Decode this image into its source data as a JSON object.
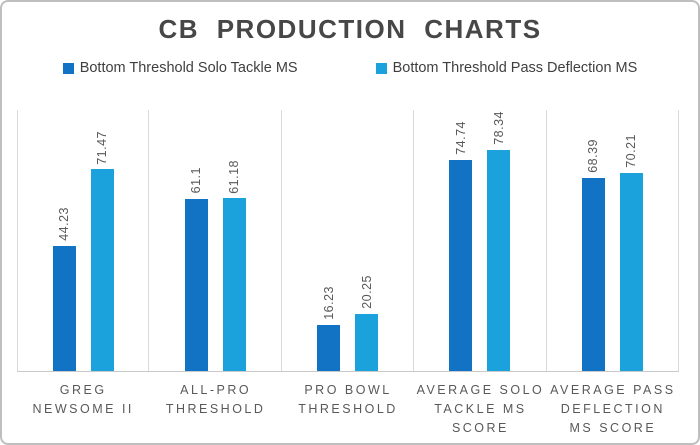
{
  "title": "CB PRODUCTION CHARTS",
  "legend": [
    {
      "label": "Bottom Threshold Solo Tackle MS",
      "color": "#1272C3",
      "icon": "legend-swatch-square"
    },
    {
      "label": "Bottom Threshold Pass Deflection MS",
      "color": "#1BA1DC",
      "icon": "legend-swatch-square"
    }
  ],
  "chart_data": {
    "type": "bar",
    "title": "CB PRODUCTION CHARTS",
    "categories": [
      "GREG NEWSOME II",
      "ALL-PRO THRESHOLD",
      "PRO BOWL THRESHOLD",
      "AVERAGE SOLO TACKLE MS SCORE",
      "AVERAGE PASS DEFLECTION MS SCORE"
    ],
    "series": [
      {
        "name": "Bottom Threshold Solo Tackle MS",
        "color": "#1272C3",
        "values": [
          44.23,
          61.1,
          16.23,
          74.74,
          68.39
        ]
      },
      {
        "name": "Bottom Threshold Pass Deflection MS",
        "color": "#1BA1DC",
        "values": [
          71.47,
          61.18,
          20.25,
          78.34,
          70.21
        ]
      }
    ],
    "value_labels": [
      [
        "44.23",
        "61.1",
        "16.23",
        "74.74",
        "68.39"
      ],
      [
        "71.47",
        "61.18",
        "20.25",
        "78.34",
        "70.21"
      ]
    ],
    "value_label_rotation": -90,
    "xlabel": "",
    "ylabel": "",
    "ylim": [
      0,
      92.5
    ],
    "grid": "vertical-category-separators",
    "axis_line": "bottom",
    "legend_position": "top"
  }
}
